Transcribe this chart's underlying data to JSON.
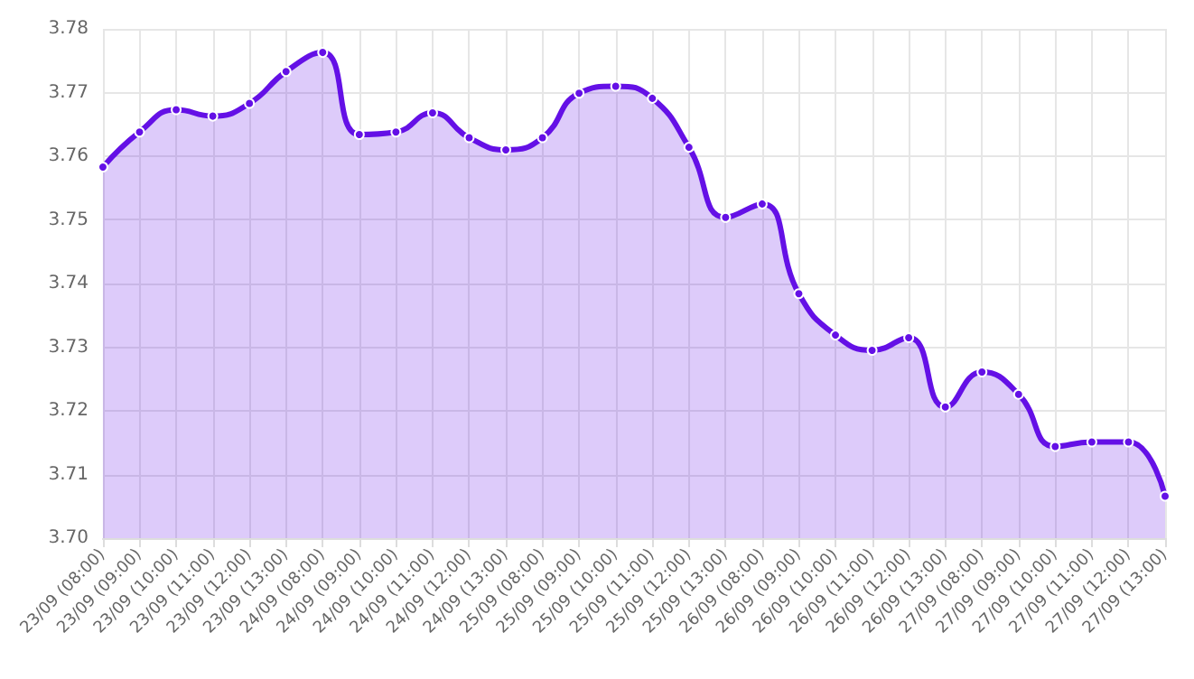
{
  "chart_data": {
    "type": "area",
    "categories": [
      "23/09 (08:00)",
      "23/09 (09:00)",
      "23/09 (10:00)",
      "23/09 (11:00)",
      "23/09 (12:00)",
      "23/09 (13:00)",
      "24/09 (08:00)",
      "24/09 (09:00)",
      "24/09 (10:00)",
      "24/09 (11:00)",
      "24/09 (12:00)",
      "24/09 (13:00)",
      "25/09 (08:00)",
      "25/09 (09:00)",
      "25/09 (10:00)",
      "25/09 (11:00)",
      "25/09 (12:00)",
      "25/09 (13:00)",
      "26/09 (08:00)",
      "26/09 (09:00)",
      "26/09 (10:00)",
      "26/09 (11:00)",
      "26/09 (12:00)",
      "26/09 (13:00)",
      "27/09 (08:00)",
      "27/09 (09:00)",
      "27/09 (10:00)",
      "27/09 (11:00)",
      "27/09 (12:00)",
      "27/09 (13:00)"
    ],
    "series": [
      {
        "color": "#6410e6",
        "values": [
          3.7583,
          3.7638,
          3.7673,
          3.7663,
          3.7683,
          3.7733,
          3.7763,
          3.7634,
          3.7638,
          3.7668,
          3.7629,
          3.761,
          3.7629,
          3.7699,
          3.771,
          3.7691,
          3.7614,
          3.7504,
          3.7525,
          3.7384,
          3.7319,
          3.7295,
          3.7315,
          3.7206,
          3.7261,
          3.7226,
          3.7144,
          3.7151,
          3.7151,
          3.7066
        ]
      }
    ],
    "ylim": [
      3.7,
      3.78
    ],
    "yticks": [
      {
        "value": 3.7,
        "label": "3.70"
      },
      3.71,
      3.72,
      3.73,
      3.74,
      3.75,
      3.76,
      3.77,
      3.78
    ],
    "grid": true,
    "marker": "circle",
    "line_style": "solid"
  }
}
